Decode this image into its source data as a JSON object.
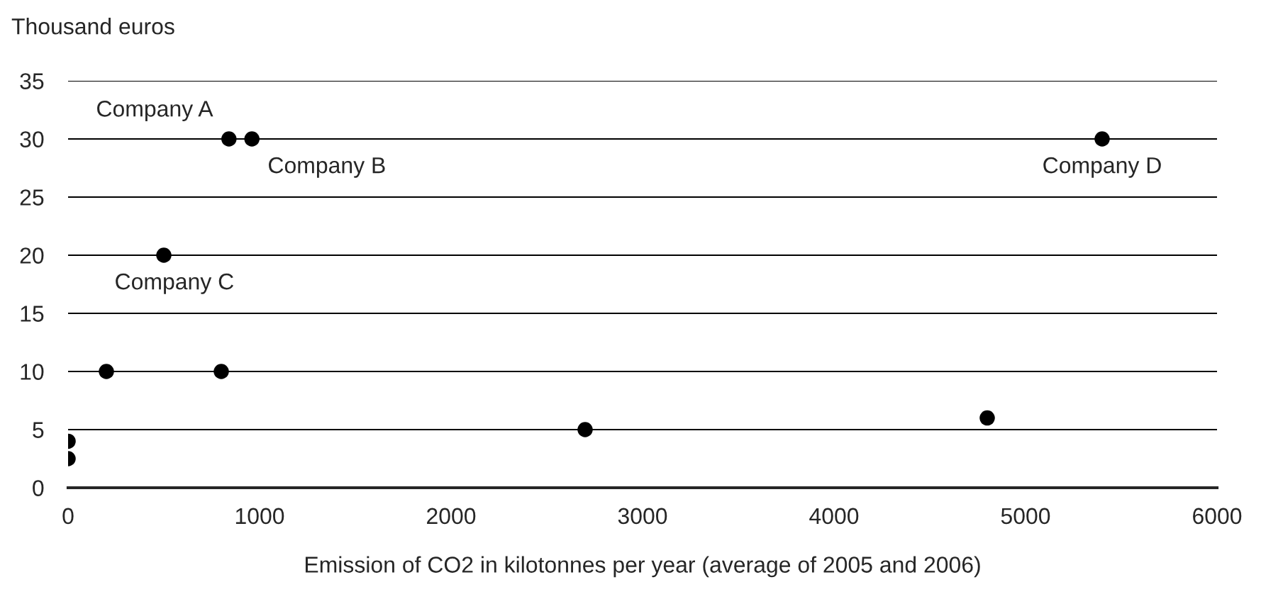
{
  "chart_data": {
    "type": "scatter",
    "xlabel": "Emission of CO2 in kilotonnes per year (average of 2005 and 2006)",
    "ylabel": "Thousand euros",
    "x": [
      0,
      0,
      200,
      800,
      500,
      840,
      960,
      5400,
      2700,
      4800
    ],
    "values": [
      2.5,
      4,
      10,
      10,
      20,
      30,
      30,
      30,
      5,
      6
    ],
    "color": "#000000",
    "marker": "circle",
    "xlim": [
      0,
      6000
    ],
    "xticks": [
      0,
      1000,
      2000,
      3000,
      4000,
      5000,
      6000
    ],
    "ylim": [
      0,
      35
    ],
    "yticks": [
      0,
      5,
      10,
      15,
      20,
      25,
      30,
      35
    ],
    "grid": "y",
    "annotations": [
      {
        "text": "Company A",
        "x": 840,
        "y": 30
      },
      {
        "text": "Company B",
        "x": 960,
        "y": 30
      },
      {
        "text": "Company C",
        "x": 500,
        "y": 20
      },
      {
        "text": "Company D",
        "x": 5400,
        "y": 30
      }
    ]
  }
}
